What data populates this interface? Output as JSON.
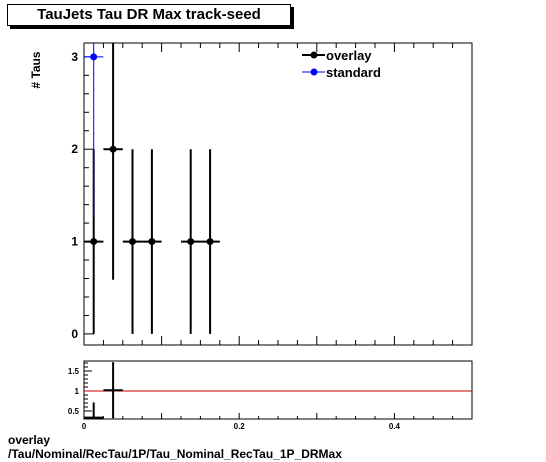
{
  "title": "TauJets Tau DR Max track-seed",
  "footer": {
    "line1": "overlay",
    "line2": "/Tau/Nominal/RecTau/1P/Tau_Nominal_RecTau_1P_DRMax"
  },
  "colors": {
    "overlay": "#000000",
    "standard": "#0000ff",
    "ratio_line": "#cc0000"
  },
  "chart_data": [
    {
      "type": "scatter",
      "title": "TauJets Tau DR Max track-seed",
      "ylabel": "# Taus",
      "xlabel": "",
      "xlim": [
        0,
        0.5
      ],
      "ylim": [
        -0.12,
        3.15
      ],
      "yticks": [
        "0",
        "1",
        "2",
        "3"
      ],
      "legend": {
        "placement": "top-right",
        "entries": [
          "overlay",
          "standard"
        ]
      },
      "series": [
        {
          "name": "overlay",
          "marker": "circle",
          "points": [
            {
              "x": 0.0125,
              "y": 1,
              "xerr": 0.0125,
              "yerr": 1
            },
            {
              "x": 0.0375,
              "y": 2,
              "xerr": 0.0125,
              "yerr": 1.414
            },
            {
              "x": 0.0625,
              "y": 1,
              "xerr": 0.0125,
              "yerr": 1
            },
            {
              "x": 0.0875,
              "y": 1,
              "xerr": 0.0125,
              "yerr": 1
            },
            {
              "x": 0.1375,
              "y": 1,
              "xerr": 0.0125,
              "yerr": 1
            },
            {
              "x": 0.1625,
              "y": 1,
              "xerr": 0.0125,
              "yerr": 1
            }
          ]
        },
        {
          "name": "standard",
          "marker": "circle",
          "points": [
            {
              "x": 0.0125,
              "y": 3,
              "xerr": 0.0125,
              "yerr": 1.732
            }
          ]
        }
      ]
    },
    {
      "type": "line",
      "xlim": [
        0,
        0.5
      ],
      "ylim": [
        0.3,
        1.75
      ],
      "xticks": [
        "0",
        "0.2",
        "0.4"
      ],
      "yticks": [
        "0.5",
        "1",
        "1.5"
      ],
      "reference_line": 1,
      "series": [
        {
          "points": [
            {
              "x": 0.0125,
              "y": 0.333,
              "xerr": 0.0125,
              "yerr": 0.38
            },
            {
              "x": 0.0375,
              "y": 1.02,
              "xerr": 0.0125,
              "yerr": 0.7
            }
          ]
        }
      ]
    }
  ]
}
